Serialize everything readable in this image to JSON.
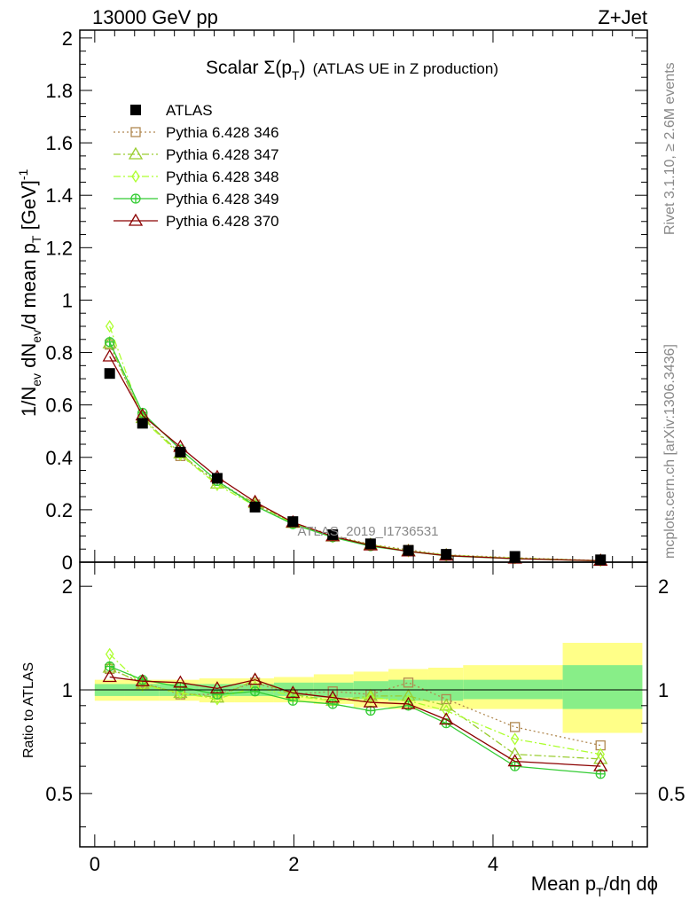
{
  "header": {
    "left": "13000 GeV pp",
    "right": "Z+Jet"
  },
  "side_labels": {
    "rivet": "Rivet 3.1.10, ≥ 2.6M events",
    "mcplots": "mcplots.cern.ch [arXiv:1306.3436]"
  },
  "chart_data": {
    "type": "scatter",
    "title_main": "Scalar Σ(p",
    "title_sub": "T",
    "title_end": ")",
    "title_note": "(ATLAS UE in Z production)",
    "watermark": "ATLAS_2019_I1736531",
    "xlabel_main": "Mean p",
    "xlabel_sub": "T",
    "xlabel_end": "/dη dϕ",
    "ylabel_parts": [
      "1/N",
      "ev",
      " dN",
      "ev",
      "/d mean p",
      "T",
      " [GeV]",
      "-1"
    ],
    "ratio_ylabel": "Ratio to ATLAS",
    "xlim": [
      -0.15,
      5.55
    ],
    "ylim": [
      0,
      2.03
    ],
    "ratio_ylim": [
      0.35,
      2.35
    ],
    "x_ticks": [
      0,
      2,
      4
    ],
    "x_tick_labels": [
      "0",
      "2",
      "4"
    ],
    "y_ticks": [
      0,
      0.2,
      0.4,
      0.6,
      0.8,
      1,
      1.2,
      1.4,
      1.6,
      1.8,
      2
    ],
    "y_tick_labels": [
      "0",
      "0.2",
      "0.4",
      "0.6",
      "0.8",
      "1",
      "1.2",
      "1.4",
      "1.6",
      "1.8",
      "2"
    ],
    "ratio_ticks": [
      0.5,
      1,
      2
    ],
    "ratio_tick_labels": [
      "0.5",
      "1",
      "2"
    ],
    "x": [
      0.15,
      0.48,
      0.86,
      1.23,
      1.61,
      1.99,
      2.39,
      2.77,
      3.15,
      3.53,
      4.22,
      5.08
    ],
    "bin_edges": [
      0.0,
      0.3,
      0.65,
      1.05,
      1.4,
      1.8,
      2.2,
      2.6,
      2.95,
      3.35,
      3.7,
      4.7,
      5.5
    ],
    "band_green": [
      [
        0.96,
        1.04
      ],
      [
        0.96,
        1.04
      ],
      [
        0.96,
        1.04
      ],
      [
        0.96,
        1.04
      ],
      [
        0.96,
        1.04
      ],
      [
        0.96,
        1.05
      ],
      [
        0.95,
        1.05
      ],
      [
        0.94,
        1.06
      ],
      [
        0.93,
        1.07
      ],
      [
        0.93,
        1.07
      ],
      [
        0.94,
        1.07
      ],
      [
        0.88,
        1.18
      ]
    ],
    "band_yellow": [
      [
        0.93,
        1.07
      ],
      [
        0.93,
        1.07
      ],
      [
        0.93,
        1.07
      ],
      [
        0.92,
        1.08
      ],
      [
        0.92,
        1.08
      ],
      [
        0.92,
        1.09
      ],
      [
        0.91,
        1.11
      ],
      [
        0.89,
        1.13
      ],
      [
        0.88,
        1.15
      ],
      [
        0.88,
        1.16
      ],
      [
        0.88,
        1.18
      ],
      [
        0.75,
        1.37
      ]
    ],
    "legend_position": "top-left",
    "series": [
      {
        "name": "ATLAS",
        "color": "#000000",
        "marker": "square-filled",
        "line": "none",
        "values": [
          0.72,
          0.53,
          0.42,
          0.32,
          0.21,
          0.155,
          0.105,
          0.07,
          0.045,
          0.03,
          0.022,
          0.009
        ]
      },
      {
        "name": "Pythia 6.428 346",
        "color": "#B08850",
        "marker": "square-open",
        "line": "dotted",
        "values": [
          0.83,
          0.555,
          0.405,
          0.31,
          0.22,
          0.15,
          0.103,
          0.068,
          0.047,
          0.028,
          0.017,
          0.0062
        ],
        "ratio": [
          1.15,
          1.05,
          0.97,
          0.97,
          1.05,
          0.97,
          0.99,
          0.97,
          1.05,
          0.94,
          0.78,
          0.69
        ]
      },
      {
        "name": "Pythia 6.428 347",
        "color": "#9ACD32",
        "marker": "triangle-open",
        "line": "dashdot",
        "values": [
          0.835,
          0.55,
          0.415,
          0.3,
          0.225,
          0.15,
          0.098,
          0.067,
          0.043,
          0.027,
          0.014,
          0.0057
        ],
        "ratio": [
          1.16,
          1.04,
          0.98,
          0.95,
          1.07,
          0.97,
          0.93,
          0.96,
          0.96,
          0.9,
          0.65,
          0.63
        ]
      },
      {
        "name": "Pythia 6.428 348",
        "color": "#ADFF2F",
        "marker": "diamond-open",
        "line": "dashdot",
        "values": [
          0.9,
          0.545,
          0.41,
          0.295,
          0.215,
          0.148,
          0.097,
          0.066,
          0.042,
          0.026,
          0.0155,
          0.0058
        ],
        "ratio": [
          1.27,
          1.03,
          0.98,
          0.94,
          1.02,
          0.96,
          0.93,
          0.95,
          0.93,
          0.87,
          0.72,
          0.65
        ]
      },
      {
        "name": "Pythia 6.428 349",
        "color": "#33CC33",
        "marker": "circle-cross",
        "line": "solid",
        "values": [
          0.84,
          0.57,
          0.43,
          0.31,
          0.215,
          0.145,
          0.095,
          0.061,
          0.041,
          0.024,
          0.0132,
          0.0051
        ],
        "ratio": [
          1.17,
          1.07,
          1.02,
          0.97,
          0.99,
          0.93,
          0.91,
          0.87,
          0.9,
          0.8,
          0.6,
          0.57
        ]
      },
      {
        "name": "Pythia 6.428 370",
        "color": "#8B0000",
        "marker": "triangle-open",
        "line": "solid",
        "values": [
          0.785,
          0.56,
          0.44,
          0.325,
          0.23,
          0.152,
          0.099,
          0.064,
          0.041,
          0.025,
          0.0136,
          0.0054
        ],
        "ratio": [
          1.09,
          1.06,
          1.05,
          1.01,
          1.07,
          0.98,
          0.95,
          0.92,
          0.91,
          0.82,
          0.62,
          0.6
        ]
      }
    ]
  }
}
